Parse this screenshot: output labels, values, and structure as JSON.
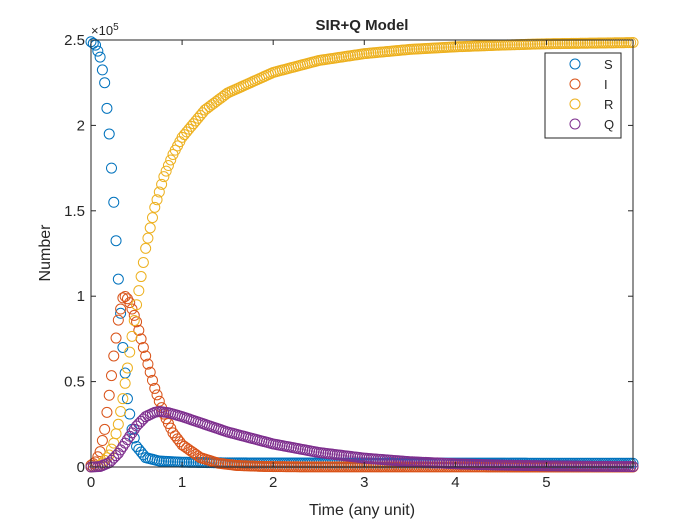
{
  "chart_data": {
    "type": "scatter",
    "title": "SIR+Q Model",
    "xlabel": "Time (any unit)",
    "ylabel": "Number",
    "xlim": [
      0,
      5.95
    ],
    "ylim": [
      0,
      250000
    ],
    "y_exponent_base": "×10",
    "y_exponent_power": "5",
    "x_ticks": [
      0,
      1,
      2,
      3,
      4,
      5
    ],
    "x_tick_labels": [
      "0",
      "1",
      "2",
      "3",
      "4",
      "5"
    ],
    "y_ticks": [
      0,
      50000,
      100000,
      150000,
      200000,
      250000
    ],
    "y_tick_labels": [
      "0",
      "0.5",
      "1",
      "1.5",
      "2",
      "2.5"
    ],
    "marker": "circle-open",
    "legend_location": "top-right",
    "time_step": 0.025,
    "t_end": 5.95,
    "series": [
      {
        "name": "S",
        "color": "#0072BD",
        "key_points": [
          [
            0,
            249000
          ],
          [
            0.05,
            247000
          ],
          [
            0.1,
            240000
          ],
          [
            0.15,
            225000
          ],
          [
            0.2,
            195000
          ],
          [
            0.25,
            155000
          ],
          [
            0.3,
            110000
          ],
          [
            0.35,
            70000
          ],
          [
            0.4,
            40000
          ],
          [
            0.45,
            22000
          ],
          [
            0.5,
            12000
          ],
          [
            0.6,
            5500
          ],
          [
            0.75,
            3500
          ],
          [
            1.0,
            2800
          ],
          [
            1.5,
            2400
          ],
          [
            2.5,
            2300
          ],
          [
            5.95,
            2200
          ]
        ]
      },
      {
        "name": "I",
        "color": "#D95319",
        "key_points": [
          [
            0,
            1000
          ],
          [
            0.05,
            3000
          ],
          [
            0.1,
            9000
          ],
          [
            0.15,
            22000
          ],
          [
            0.2,
            42000
          ],
          [
            0.25,
            65000
          ],
          [
            0.3,
            86000
          ],
          [
            0.35,
            99000
          ],
          [
            0.38,
            100000
          ],
          [
            0.42,
            97000
          ],
          [
            0.5,
            85000
          ],
          [
            0.6,
            65000
          ],
          [
            0.7,
            46000
          ],
          [
            0.8,
            31000
          ],
          [
            0.9,
            20000
          ],
          [
            1.0,
            13000
          ],
          [
            1.2,
            5500
          ],
          [
            1.4,
            2200
          ],
          [
            1.6,
            900
          ],
          [
            1.9,
            300
          ],
          [
            2.3,
            100
          ],
          [
            5.95,
            0
          ]
        ]
      },
      {
        "name": "R",
        "color": "#EDB120",
        "key_points": [
          [
            0,
            0
          ],
          [
            0.1,
            800
          ],
          [
            0.2,
            7000
          ],
          [
            0.25,
            14000
          ],
          [
            0.3,
            25000
          ],
          [
            0.35,
            40000
          ],
          [
            0.4,
            58000
          ],
          [
            0.5,
            95000
          ],
          [
            0.6,
            128000
          ],
          [
            0.7,
            152000
          ],
          [
            0.8,
            170000
          ],
          [
            0.9,
            183000
          ],
          [
            1.0,
            193000
          ],
          [
            1.25,
            209000
          ],
          [
            1.5,
            219000
          ],
          [
            2.0,
            231000
          ],
          [
            2.5,
            238000
          ],
          [
            3.0,
            242000
          ],
          [
            3.5,
            244500
          ],
          [
            4.0,
            246000
          ],
          [
            4.5,
            247000
          ],
          [
            5.0,
            247800
          ],
          [
            5.95,
            248500
          ]
        ]
      },
      {
        "name": "Q",
        "color": "#7E2F8E",
        "key_points": [
          [
            0,
            0
          ],
          [
            0.1,
            300
          ],
          [
            0.2,
            2500
          ],
          [
            0.3,
            8000
          ],
          [
            0.4,
            16000
          ],
          [
            0.5,
            24000
          ],
          [
            0.6,
            29500
          ],
          [
            0.7,
            32000
          ],
          [
            0.75,
            32500
          ],
          [
            0.85,
            31800
          ],
          [
            1.0,
            29500
          ],
          [
            1.25,
            25000
          ],
          [
            1.5,
            20500
          ],
          [
            2.0,
            13500
          ],
          [
            2.5,
            8500
          ],
          [
            3.0,
            5200
          ],
          [
            3.5,
            3100
          ],
          [
            4.0,
            1900
          ],
          [
            4.5,
            1100
          ],
          [
            5.0,
            700
          ],
          [
            5.5,
            400
          ],
          [
            5.95,
            250
          ]
        ]
      }
    ]
  }
}
